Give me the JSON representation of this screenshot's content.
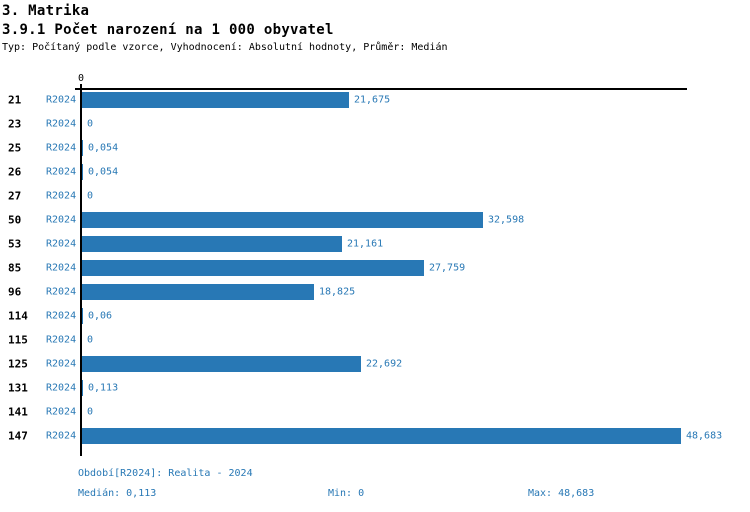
{
  "header": {
    "title": "3. Matrika",
    "subtitle": "3.9.1 Počet narození na 1 000 obyvatel",
    "meta": "Typ: Počítaný podle vzorce, Vyhodnocení: Absolutní hodnoty, Průměr: Medián"
  },
  "chart_data": {
    "type": "bar",
    "orientation": "horizontal",
    "title": "3.9.1 Počet narození na 1 000 obyvatel",
    "series_name": "R2024",
    "categories": [
      "21",
      "23",
      "25",
      "26",
      "27",
      "50",
      "53",
      "85",
      "96",
      "114",
      "115",
      "125",
      "131",
      "141",
      "147"
    ],
    "values": [
      21.675,
      0,
      0.054,
      0.054,
      0,
      32.598,
      21.161,
      27.759,
      18.825,
      0.06,
      0,
      22.692,
      0.113,
      0,
      48.683
    ],
    "value_labels": [
      "21,675",
      "0",
      "0,054",
      "0,054",
      "0",
      "32,598",
      "21,161",
      "27,759",
      "18,825",
      "0,06",
      "0",
      "22,692",
      "0,113",
      "0",
      "48,683"
    ],
    "xlim": [
      0,
      48.683
    ],
    "x_axis_tick_label": "0",
    "grid": false,
    "legend_position": "none",
    "bar_color": "#2878b5"
  },
  "footer": {
    "period": "Období[R2024]: Realita - 2024",
    "median": "Medián: 0,113",
    "min": "Min: 0",
    "max": "Max: 48,683"
  },
  "colors": {
    "bar": "#2878b5",
    "blue_text": "#2878b5",
    "black_text": "#000000",
    "background": "#ffffff"
  }
}
